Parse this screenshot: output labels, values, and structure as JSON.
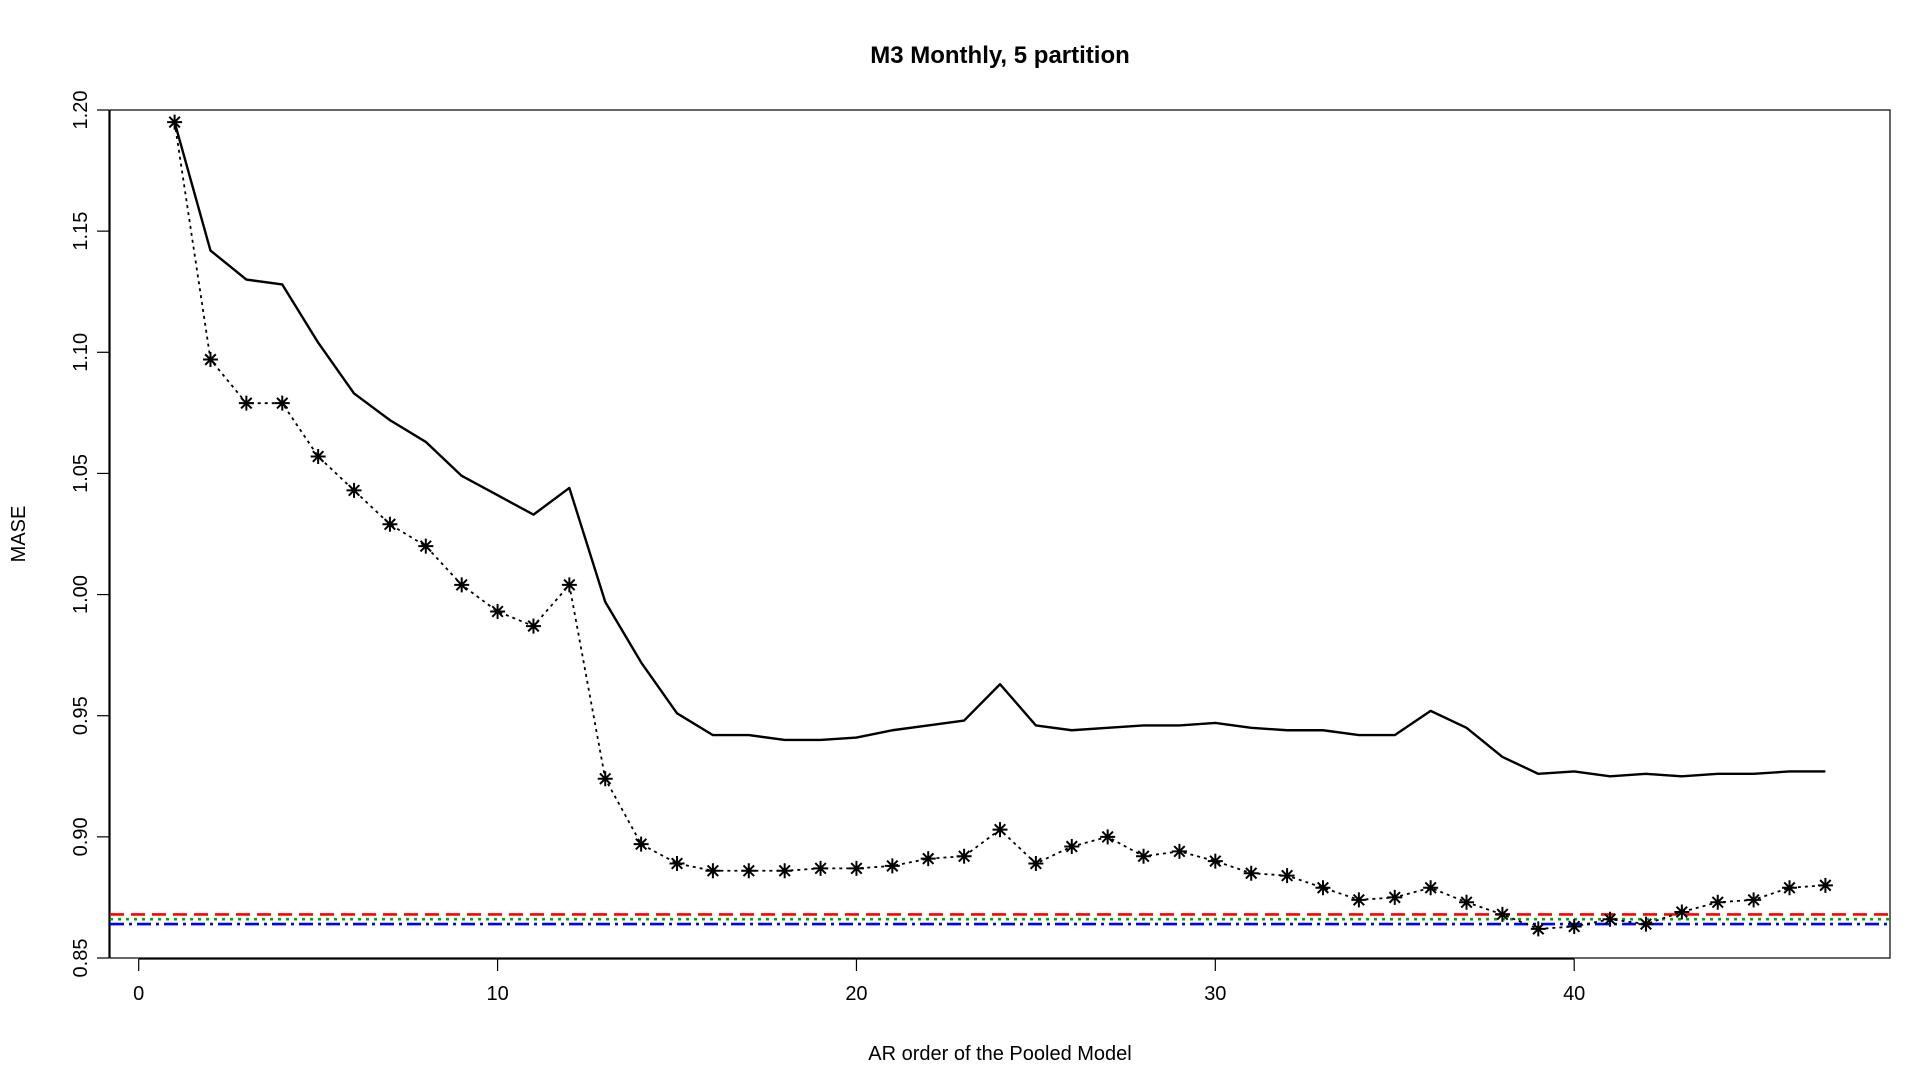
{
  "chart_data": {
    "type": "line",
    "title": "M3 Monthly, 5 partition",
    "xlabel": "AR order of the Pooled Model",
    "ylabel": "MASE",
    "xlim": [
      -0.8,
      48.8
    ],
    "ylim": [
      0.85,
      1.2
    ],
    "xticks": [
      0,
      10,
      20,
      30,
      40
    ],
    "yticks": [
      0.85,
      0.9,
      0.95,
      1.0,
      1.05,
      1.1,
      1.15,
      1.2
    ],
    "ytick_labels": [
      "0.85",
      "0.90",
      "0.95",
      "1.00",
      "1.05",
      "1.10",
      "1.15",
      "1.20"
    ],
    "grid": false,
    "x": [
      1,
      2,
      3,
      4,
      5,
      6,
      7,
      8,
      9,
      10,
      11,
      12,
      13,
      14,
      15,
      16,
      17,
      18,
      19,
      20,
      21,
      22,
      23,
      24,
      25,
      26,
      27,
      28,
      29,
      30,
      31,
      32,
      33,
      34,
      35,
      36,
      37,
      38,
      39,
      40,
      41,
      42,
      43,
      44,
      45,
      46,
      47
    ],
    "series": [
      {
        "style": "solid",
        "color": "#000000",
        "values": [
          1.195,
          1.142,
          1.13,
          1.128,
          1.104,
          1.083,
          1.072,
          1.063,
          1.049,
          1.041,
          1.033,
          1.044,
          0.997,
          0.972,
          0.951,
          0.942,
          0.942,
          0.94,
          0.94,
          0.941,
          0.944,
          0.946,
          0.948,
          0.963,
          0.946,
          0.944,
          0.945,
          0.946,
          0.946,
          0.947,
          0.945,
          0.944,
          0.944,
          0.942,
          0.942,
          0.952,
          0.945,
          0.933,
          0.926,
          0.927,
          0.925,
          0.926,
          0.925,
          0.926,
          0.926,
          0.927,
          0.927
        ]
      },
      {
        "style": "dotted",
        "marker": "asterisk",
        "color": "#000000",
        "values": [
          1.195,
          1.097,
          1.079,
          1.079,
          1.057,
          1.043,
          1.029,
          1.02,
          1.004,
          0.993,
          0.987,
          1.004,
          0.924,
          0.897,
          0.889,
          0.886,
          0.886,
          0.886,
          0.887,
          0.887,
          0.888,
          0.891,
          0.892,
          0.903,
          0.889,
          0.896,
          0.9,
          0.892,
          0.894,
          0.89,
          0.885,
          0.884,
          0.879,
          0.874,
          0.875,
          0.879,
          0.873,
          0.868,
          0.862,
          0.863,
          0.866,
          0.864,
          0.869,
          0.873,
          0.874,
          0.879,
          0.88
        ]
      }
    ],
    "reference_lines": [
      {
        "y": 0.868,
        "color": "#ff0000",
        "style": "dashed"
      },
      {
        "y": 0.866,
        "color": "#00aa00",
        "style": "dotted"
      },
      {
        "y": 0.864,
        "color": "#0000ff",
        "style": "dashdot"
      }
    ]
  }
}
